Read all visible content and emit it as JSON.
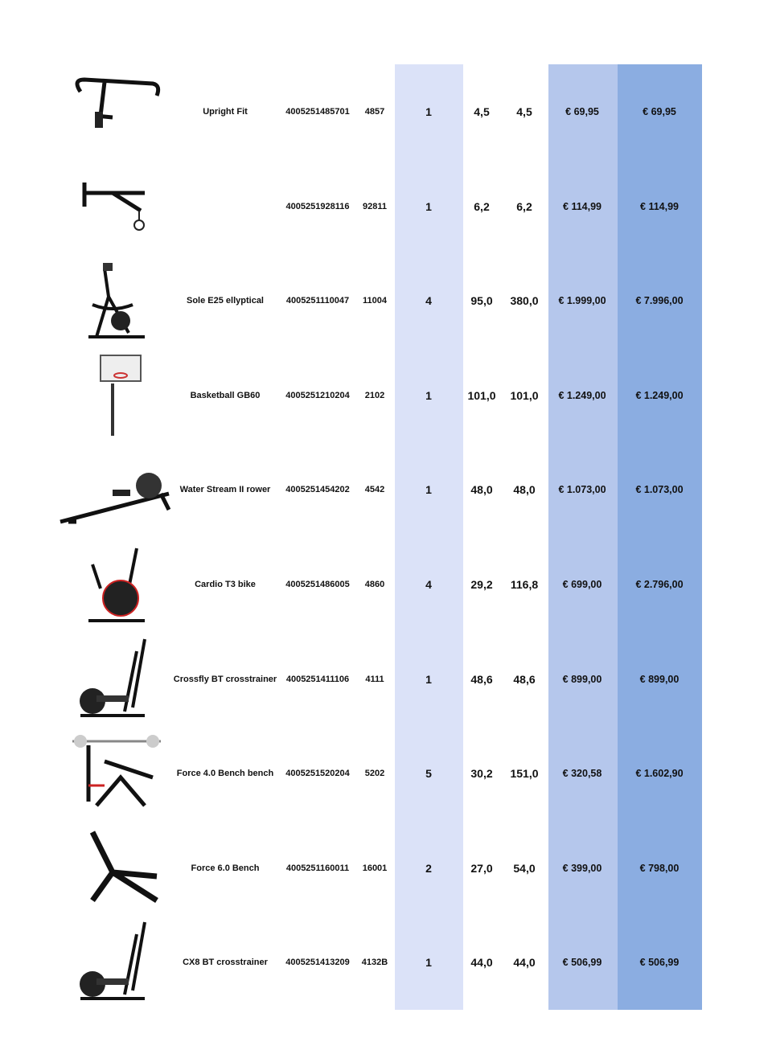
{
  "colors": {
    "qty_column": "#dbe2f8",
    "price_column": "#b5c7ec",
    "total_column": "#8badE1"
  },
  "rows": [
    {
      "image": "upright-bar-icon",
      "name": "Upright Fit",
      "ean": "4005251485701",
      "code": "4857",
      "qty": "1",
      "weight": "4,5",
      "total_weight": "4,5",
      "price": "€ 69,95",
      "total": "€ 69,95"
    },
    {
      "image": "wall-bar-icon",
      "name": "",
      "ean": "4005251928116",
      "code": "92811",
      "qty": "1",
      "weight": "6,2",
      "total_weight": "6,2",
      "price": "€ 114,99",
      "total": "€ 114,99"
    },
    {
      "image": "elliptical-icon",
      "name": "Sole E25 ellyptical",
      "ean": "4005251110047",
      "code": "11004",
      "qty": "4",
      "weight": "95,0",
      "total_weight": "380,0",
      "price": "€ 1.999,00",
      "total": "€ 7.996,00"
    },
    {
      "image": "basketball-hoop-icon",
      "name": "Basketball GB60",
      "ean": "4005251210204",
      "code": "2102",
      "qty": "1",
      "weight": "101,0",
      "total_weight": "101,0",
      "price": "€ 1.249,00",
      "total": "€ 1.249,00"
    },
    {
      "image": "rower-icon",
      "name": "Water Stream II rower",
      "ean": "4005251454202",
      "code": "4542",
      "qty": "1",
      "weight": "48,0",
      "total_weight": "48,0",
      "price": "€ 1.073,00",
      "total": "€ 1.073,00"
    },
    {
      "image": "exercise-bike-icon",
      "name": "Cardio T3 bike",
      "ean": "4005251486005",
      "code": "4860",
      "qty": "4",
      "weight": "29,2",
      "total_weight": "116,8",
      "price": "€ 699,00",
      "total": "€ 2.796,00"
    },
    {
      "image": "crosstrainer-icon",
      "name": "Crossfly BT crosstrainer",
      "ean": "4005251411106",
      "code": "4111",
      "qty": "1",
      "weight": "48,6",
      "total_weight": "48,6",
      "price": "€ 899,00",
      "total": "€ 899,00"
    },
    {
      "image": "bench-press-icon",
      "name": "Force 4.0 Bench bench",
      "ean": "4005251520204",
      "code": "5202",
      "qty": "5",
      "weight": "30,2",
      "total_weight": "151,0",
      "price": "€ 320,58",
      "total": "€ 1.602,90"
    },
    {
      "image": "bench-icon",
      "name": "Force 6.0 Bench",
      "ean": "4005251160011",
      "code": "16001",
      "qty": "2",
      "weight": "27,0",
      "total_weight": "54,0",
      "price": "€ 399,00",
      "total": "€ 798,00"
    },
    {
      "image": "crosstrainer-icon",
      "name": "CX8 BT crosstrainer",
      "ean": "4005251413209",
      "code": "4132B",
      "qty": "1",
      "weight": "44,0",
      "total_weight": "44,0",
      "price": "€ 506,99",
      "total": "€ 506,99"
    }
  ]
}
